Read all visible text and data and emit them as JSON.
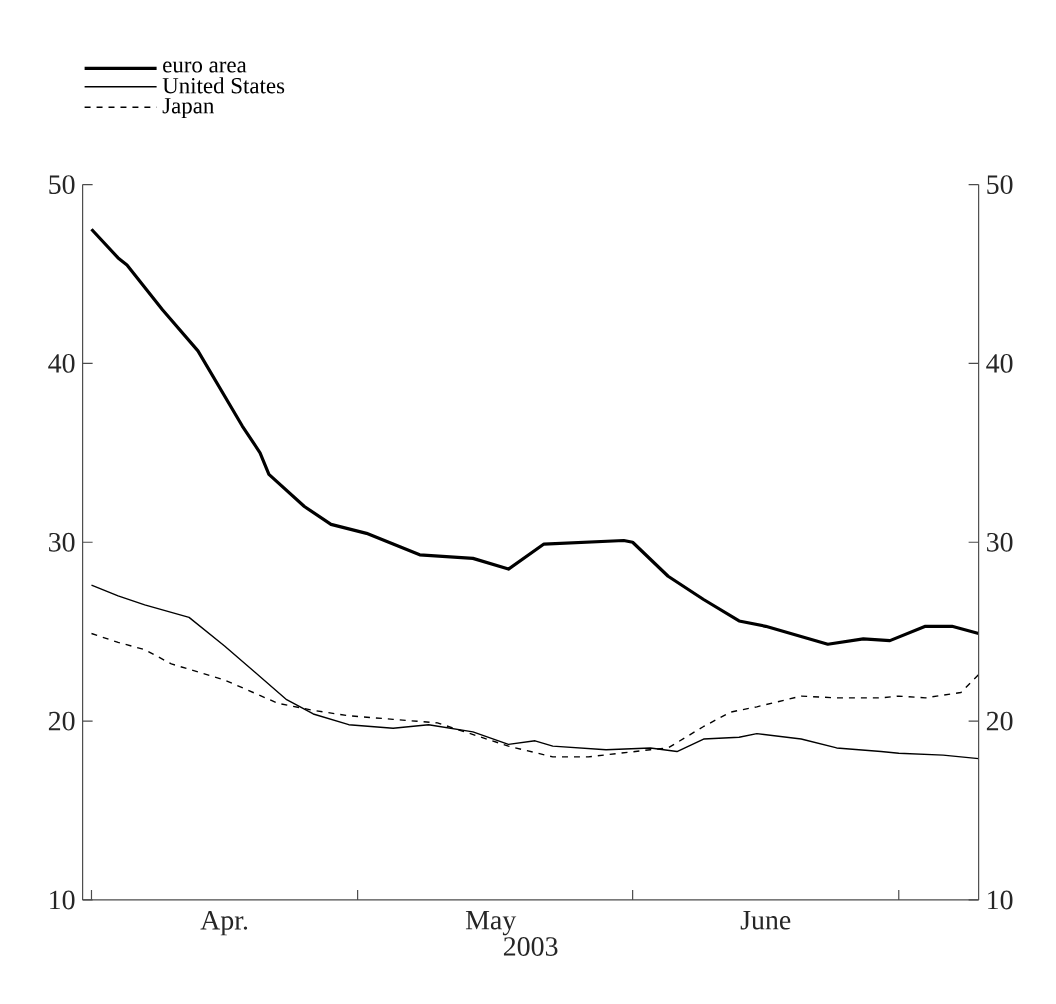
{
  "chart_data": {
    "type": "line",
    "xlabel": "2003",
    "legend": "top left",
    "xlim": [
      "2003-03-31",
      "2003-07-10"
    ],
    "xticks": [
      {
        "value": "2003-04-01",
        "label": null
      },
      {
        "value": "2003-04-16",
        "label": "Apr."
      },
      {
        "value": "2003-05-01",
        "label": null
      },
      {
        "value": "2003-05-16",
        "label": "May"
      },
      {
        "value": "2003-06-01",
        "label": null
      },
      {
        "value": "2003-06-16",
        "label": "June"
      },
      {
        "value": "2003-07-01",
        "label": null
      }
    ],
    "ylim": [
      10,
      50
    ],
    "yticks": [
      10,
      20,
      30,
      40,
      50
    ],
    "y2lim": [
      10,
      50
    ],
    "y2ticks": [
      10,
      20,
      30,
      40,
      50
    ],
    "series": [
      {
        "name": "euro area",
        "color": "#000000",
        "line_style": "solid",
        "x": [
          "2003-04-01",
          "2003-04-04",
          "2003-04-05",
          "2003-04-09",
          "2003-04-13",
          "2003-04-18",
          "2003-04-20",
          "2003-04-21",
          "2003-04-25",
          "2003-04-28",
          "2003-05-02",
          "2003-05-08",
          "2003-05-14",
          "2003-05-18",
          "2003-05-22",
          "2003-05-31",
          "2003-06-01",
          "2003-06-05",
          "2003-06-09",
          "2003-06-13",
          "2003-06-16",
          "2003-06-23",
          "2003-06-27",
          "2003-06-30",
          "2003-07-04",
          "2003-07-07",
          "2003-07-10"
        ],
        "values": [
          47.5,
          45.9,
          45.5,
          43.0,
          40.7,
          36.5,
          35.0,
          33.8,
          32.0,
          31.0,
          30.5,
          29.3,
          29.1,
          28.5,
          29.9,
          30.1,
          30.0,
          28.1,
          26.8,
          25.6,
          25.3,
          24.3,
          24.6,
          24.5,
          25.3,
          25.3,
          24.9
        ]
      },
      {
        "name": "United States",
        "color": "#000000",
        "line_style": "solid",
        "x": [
          "2003-04-01",
          "2003-04-04",
          "2003-04-07",
          "2003-04-12",
          "2003-04-16",
          "2003-04-23",
          "2003-04-26",
          "2003-04-30",
          "2003-05-05",
          "2003-05-09",
          "2003-05-14",
          "2003-05-18",
          "2003-05-21",
          "2003-05-23",
          "2003-05-29",
          "2003-06-03",
          "2003-06-06",
          "2003-06-09",
          "2003-06-13",
          "2003-06-15",
          "2003-06-20",
          "2003-06-24",
          "2003-06-29",
          "2003-07-01",
          "2003-07-06",
          "2003-07-10"
        ],
        "values": [
          27.6,
          27.0,
          26.5,
          25.8,
          24.2,
          21.2,
          20.4,
          19.8,
          19.6,
          19.8,
          19.4,
          18.7,
          18.9,
          18.6,
          18.4,
          18.5,
          18.3,
          19.0,
          19.1,
          19.3,
          19.0,
          18.5,
          18.3,
          18.2,
          18.1,
          17.9
        ]
      },
      {
        "name": "Japan",
        "color": "#000000",
        "line_style": "dashed",
        "x": [
          "2003-04-01",
          "2003-04-04",
          "2003-04-07",
          "2003-04-10",
          "2003-04-16",
          "2003-04-22",
          "2003-04-26",
          "2003-04-30",
          "2003-05-05",
          "2003-05-10",
          "2003-05-18",
          "2003-05-23",
          "2003-05-27",
          "2003-06-03",
          "2003-06-05",
          "2003-06-09",
          "2003-06-12",
          "2003-06-15",
          "2003-06-20",
          "2003-06-24",
          "2003-06-29",
          "2003-07-01",
          "2003-07-04",
          "2003-07-08",
          "2003-07-10"
        ],
        "values": [
          24.9,
          24.4,
          24.0,
          23.2,
          22.3,
          21.0,
          20.6,
          20.3,
          20.1,
          19.9,
          18.6,
          18.0,
          18.0,
          18.4,
          18.5,
          19.7,
          20.5,
          20.8,
          21.4,
          21.3,
          21.3,
          21.4,
          21.3,
          21.6,
          22.6
        ]
      }
    ]
  }
}
